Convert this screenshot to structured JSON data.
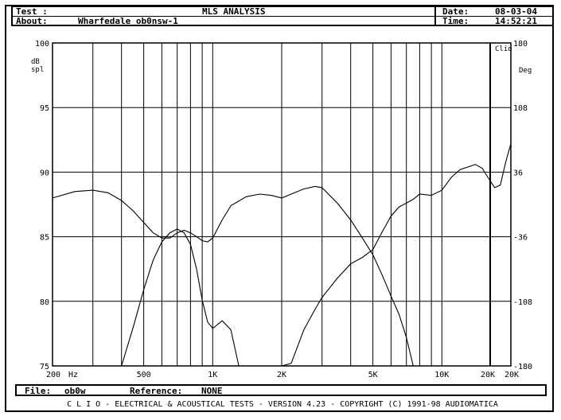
{
  "header": {
    "test_label": "Test :",
    "title": "MLS ANALYSIS",
    "date_label": "Date:",
    "date_value": "08-03-04",
    "about_label": "About:",
    "about_value": "Wharfedale ob0nsw-1",
    "time_label": "Time:",
    "time_value": "14:52:21"
  },
  "footer": {
    "file_label": "File:",
    "file_value": "ob0w",
    "reference_label": "Reference:",
    "reference_value": "NONE",
    "bottom_line": "C L I O  -  ELECTRICAL & ACOUSTICAL TESTS  -  VERSION 4.23  -  COPYRIGHT (C) 1991-98 AUDIOMATICA"
  },
  "chart_data": {
    "type": "line",
    "xscale": "log",
    "xlim": [
      200,
      20000
    ],
    "ylim": [
      75,
      100
    ],
    "y2lim": [
      -180,
      180
    ],
    "grid": true,
    "ylabel": "dB spl",
    "y2label": "Deg",
    "corner_label": "Clio",
    "x_ticks": [
      {
        "value": 200,
        "label": "200"
      },
      {
        "value": 500,
        "label": "500"
      },
      {
        "value": 1000,
        "label": "1K"
      },
      {
        "value": 2000,
        "label": "2K"
      },
      {
        "value": 5000,
        "label": "5K"
      },
      {
        "value": 10000,
        "label": "10K"
      },
      {
        "value": 20000,
        "label": "20K"
      }
    ],
    "x_unit": "Hz",
    "x_extra_label": "20K",
    "y_ticks": [
      100,
      95,
      90,
      85,
      80,
      75
    ],
    "y2_ticks": [
      180,
      108,
      36,
      -36,
      -108,
      -180
    ],
    "series": [
      {
        "axis": "left",
        "x": [
          200,
          250,
          300,
          350,
          400,
          450,
          500,
          550,
          600,
          650,
          700,
          750,
          800,
          850,
          900,
          950,
          1000,
          1100,
          1200,
          1400,
          1600,
          1800,
          2000,
          2200,
          2500,
          2800,
          3000,
          3500,
          4000,
          4500,
          5000,
          5500,
          6000,
          6500,
          7000,
          7500,
          8000,
          9000,
          10000,
          11000,
          12000,
          13000,
          14000,
          15000,
          16000,
          17000,
          18000,
          19000,
          20000
        ],
        "y": [
          88.0,
          88.5,
          88.6,
          88.4,
          87.8,
          87.0,
          86.1,
          85.3,
          84.9,
          84.9,
          85.3,
          85.5,
          85.3,
          85.0,
          84.7,
          84.6,
          84.9,
          86.3,
          87.4,
          88.1,
          88.3,
          88.2,
          88.0,
          88.3,
          88.7,
          88.9,
          88.8,
          87.6,
          86.3,
          84.9,
          83.6,
          82.0,
          80.4,
          79.0,
          77.2,
          75.0,
          75.0,
          75.0,
          75.0,
          75.0,
          75.0,
          75.0,
          75.0,
          75.0,
          75.0,
          75.0,
          75.0,
          75.0,
          75.0
        ]
      },
      {
        "axis": "left",
        "x": [
          400,
          450,
          500,
          550,
          600,
          650,
          700,
          750,
          800,
          850,
          900,
          950,
          1000,
          1100,
          1200,
          1300,
          1400,
          1600,
          1800,
          2000,
          2200,
          2500,
          2800,
          3000,
          3500,
          4000,
          4500,
          5000,
          5500,
          6000,
          6500,
          7000,
          7500,
          8000,
          9000,
          10000,
          11000,
          12000,
          13000,
          14000,
          15000,
          16000,
          17000,
          18000,
          19000,
          20000
        ],
        "y": [
          75.0,
          78.0,
          80.9,
          83.2,
          84.6,
          85.3,
          85.6,
          85.3,
          84.4,
          82.5,
          80.1,
          78.4,
          77.9,
          78.5,
          77.8,
          75.0,
          75.0,
          75.0,
          75.0,
          75.0,
          75.2,
          77.8,
          79.4,
          80.3,
          81.8,
          82.9,
          83.4,
          84.0,
          85.4,
          86.6,
          87.3,
          87.6,
          87.9,
          88.3,
          88.2,
          88.6,
          89.6,
          90.2,
          90.4,
          90.6,
          90.3,
          89.5,
          88.8,
          89.0,
          90.8,
          92.2
        ]
      }
    ]
  }
}
